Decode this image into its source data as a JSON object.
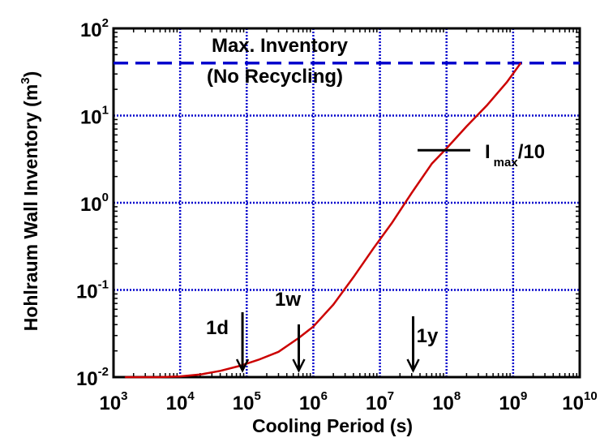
{
  "chart_data": {
    "type": "line",
    "x_scale": "log",
    "y_scale": "log",
    "xlim": [
      1000,
      10000000000
    ],
    "ylim": [
      0.01,
      100
    ],
    "grid": true,
    "xlabel": "Cooling Period (s)",
    "ylabel_text": "Hohlraum Wall Inventory (m",
    "ylabel_sup": "3",
    "ylabel_close": ")",
    "x_ticks": [
      {
        "value": 1000,
        "base": "10",
        "exp": "3"
      },
      {
        "value": 10000,
        "base": "10",
        "exp": "4"
      },
      {
        "value": 100000,
        "base": "10",
        "exp": "5"
      },
      {
        "value": 1000000,
        "base": "10",
        "exp": "6"
      },
      {
        "value": 10000000,
        "base": "10",
        "exp": "7"
      },
      {
        "value": 100000000,
        "base": "10",
        "exp": "8"
      },
      {
        "value": 1000000000,
        "base": "10",
        "exp": "9"
      },
      {
        "value": 10000000000,
        "base": "10",
        "exp": "10"
      }
    ],
    "y_ticks": [
      {
        "value": 0.01,
        "base": "10",
        "exp": "-2"
      },
      {
        "value": 0.1,
        "base": "10",
        "exp": "-1"
      },
      {
        "value": 1,
        "base": "10",
        "exp": "0"
      },
      {
        "value": 10,
        "base": "10",
        "exp": "1"
      },
      {
        "value": 100,
        "base": "10",
        "exp": "2"
      }
    ],
    "series": [
      {
        "color": "#cc0000",
        "x": [
          1500,
          5000,
          10000,
          20000,
          40000,
          80000,
          150000,
          300000,
          600000,
          1000000,
          2000000,
          4000000,
          8000000,
          15000000,
          30000000,
          60000000,
          100000000,
          200000000,
          400000000,
          800000000,
          1300000000
        ],
        "y": [
          0.0095,
          0.0098,
          0.0102,
          0.0107,
          0.0118,
          0.0135,
          0.0158,
          0.0195,
          0.028,
          0.038,
          0.068,
          0.14,
          0.3,
          0.58,
          1.3,
          2.8,
          4.2,
          7.5,
          13,
          24,
          40
        ]
      }
    ],
    "reference_line": {
      "y": 40,
      "color": "#0000cc",
      "label_lines": [
        "Max. Inventory",
        "(No Recycling)"
      ]
    },
    "imax_marker": {
      "y": 4.0,
      "label_main": "I",
      "label_sub": "max",
      "label_suffix": "/10"
    },
    "annotations": [
      {
        "label": "1d",
        "x": 86400
      },
      {
        "label": "1w",
        "x": 604800
      },
      {
        "label": "1y",
        "x": 31536000
      }
    ]
  }
}
